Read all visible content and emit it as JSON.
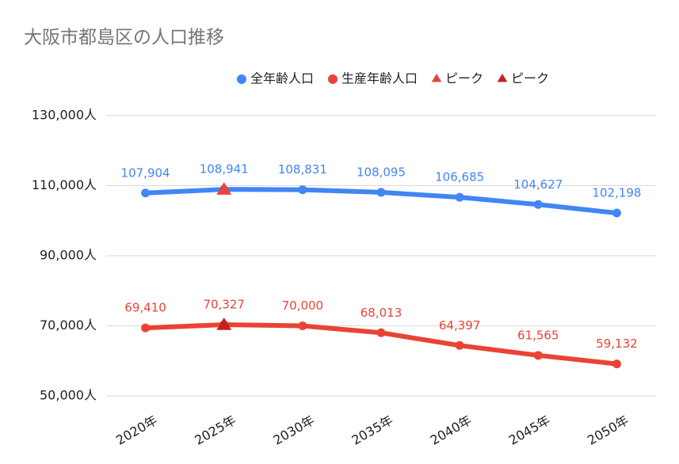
{
  "chart_data": {
    "type": "line",
    "title": "大阪市都島区の人口推移",
    "categories": [
      "2020年",
      "2025年",
      "2030年",
      "2035年",
      "2040年",
      "2045年",
      "2050年"
    ],
    "series": [
      {
        "name": "全年齢人口",
        "color": "#4285f4",
        "marker": "circle",
        "values": [
          107904,
          108941,
          108831,
          108095,
          106685,
          104627,
          102198
        ],
        "value_labels": [
          "107,904",
          "108,941",
          "108,831",
          "108,095",
          "106,685",
          "104,627",
          "102,198"
        ]
      },
      {
        "name": "生産年齢人口",
        "color": "#ea4335",
        "marker": "circle",
        "values": [
          69410,
          70327,
          70000,
          68013,
          64397,
          61565,
          59132
        ],
        "value_labels": [
          "69,410",
          "70,327",
          "70,000",
          "68,013",
          "64,397",
          "61,565",
          "59,132"
        ]
      },
      {
        "name": "ピーク",
        "color": "#e8453c",
        "marker": "triangle",
        "values": [
          null,
          108941,
          null,
          null,
          null,
          null,
          null
        ]
      },
      {
        "name": "ピーク",
        "color": "#c5221f",
        "marker": "triangle",
        "values": [
          null,
          70327,
          null,
          null,
          null,
          null,
          null
        ]
      }
    ],
    "ylim": [
      50000,
      130000
    ],
    "yticks": [
      {
        "value": 50000,
        "label": "50,000人"
      },
      {
        "value": 70000,
        "label": "70,000人"
      },
      {
        "value": 90000,
        "label": "90,000人"
      },
      {
        "value": 110000,
        "label": "110,000人"
      },
      {
        "value": 130000,
        "label": "130,000人"
      }
    ],
    "grid": true
  }
}
